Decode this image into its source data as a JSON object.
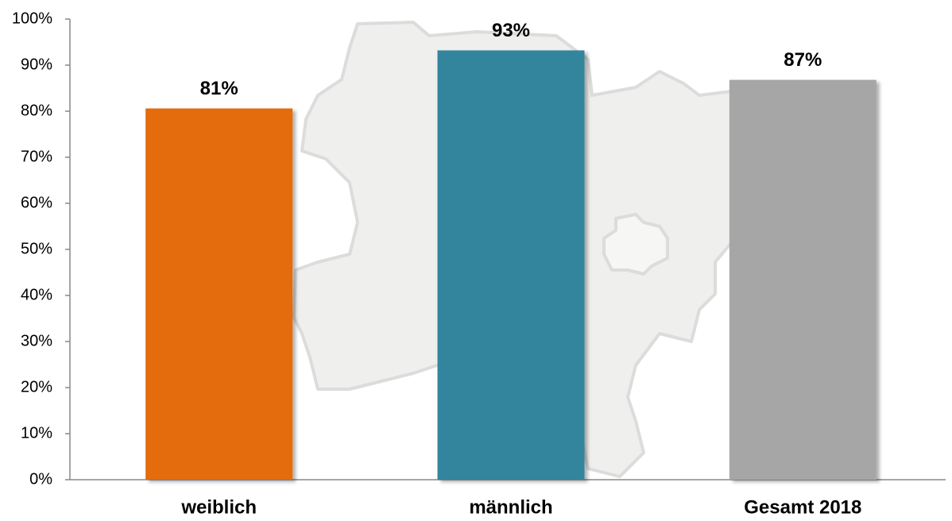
{
  "chart_data": {
    "type": "bar",
    "categories": [
      "weiblich",
      "männlich",
      "Gesamt 2018"
    ],
    "values": [
      80.6,
      93.2,
      86.8
    ],
    "value_labels": [
      "81%",
      "93%",
      "87%"
    ],
    "colors": [
      "#e46c0a",
      "#31859c",
      "#a6a6a6"
    ],
    "ylim": [
      0,
      100
    ],
    "yticks": [
      {
        "value": 0,
        "label": "0%"
      },
      {
        "value": 10,
        "label": "10%"
      },
      {
        "value": 20,
        "label": "20%"
      },
      {
        "value": 30,
        "label": "30%"
      },
      {
        "value": 40,
        "label": "40%"
      },
      {
        "value": 50,
        "label": "50%"
      },
      {
        "value": 60,
        "label": "60%"
      },
      {
        "value": 70,
        "label": "70%"
      },
      {
        "value": 80,
        "label": "80%"
      },
      {
        "value": 90,
        "label": "90%"
      },
      {
        "value": 100,
        "label": "100%"
      }
    ],
    "grid": false
  }
}
